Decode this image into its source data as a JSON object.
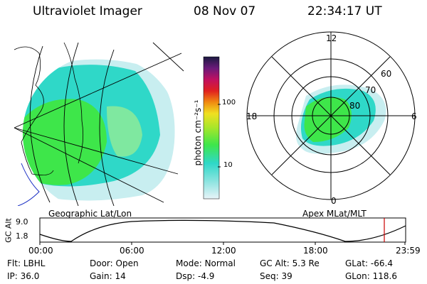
{
  "header": {
    "instrument": "Ultraviolet Imager",
    "date": "08 Nov 07",
    "time": "22:34:17 UT"
  },
  "colorbar": {
    "unit_label": "photon cm⁻²s⁻¹",
    "ticks": [
      "100",
      "10"
    ]
  },
  "left_panel": {
    "caption": "Geographic Lat/Lon"
  },
  "right_panel": {
    "caption": "Apex MLat/MLT",
    "mlt_labels": [
      "12",
      "18",
      "6",
      "0"
    ],
    "mlat_labels": [
      "60",
      "70",
      "80"
    ]
  },
  "altitude_plot": {
    "ylabel": "GC Alt",
    "yticks": [
      "9.0",
      "1.8"
    ],
    "xticks": [
      "00:00",
      "06:00",
      "12:00",
      "18:00",
      "23:59"
    ],
    "marker_color": "#cc0000"
  },
  "info": {
    "row1": [
      {
        "label": "Flt:",
        "value": "LBHL"
      },
      {
        "label": "Door:",
        "value": "Open"
      },
      {
        "label": "Mode:",
        "value": "Normal"
      },
      {
        "label": "GC Alt:",
        "value": "5.3 Re"
      },
      {
        "label": "GLat:",
        "value": "-66.4"
      }
    ],
    "row2": [
      {
        "label": "IP:",
        "value": "36.0"
      },
      {
        "label": "Gain:",
        "value": "14"
      },
      {
        "label": "Dsp:",
        "value": "-4.9"
      },
      {
        "label": "Seq:",
        "value": "39"
      },
      {
        "label": "GLon:",
        "value": "118.6"
      }
    ]
  },
  "colors": {
    "aurora_green": "#3ee64a",
    "aurora_cyan": "#2fd8c8",
    "aurora_light": "#c8eef0",
    "coast": "#000000",
    "coast_blue": "#1a2fc4"
  }
}
